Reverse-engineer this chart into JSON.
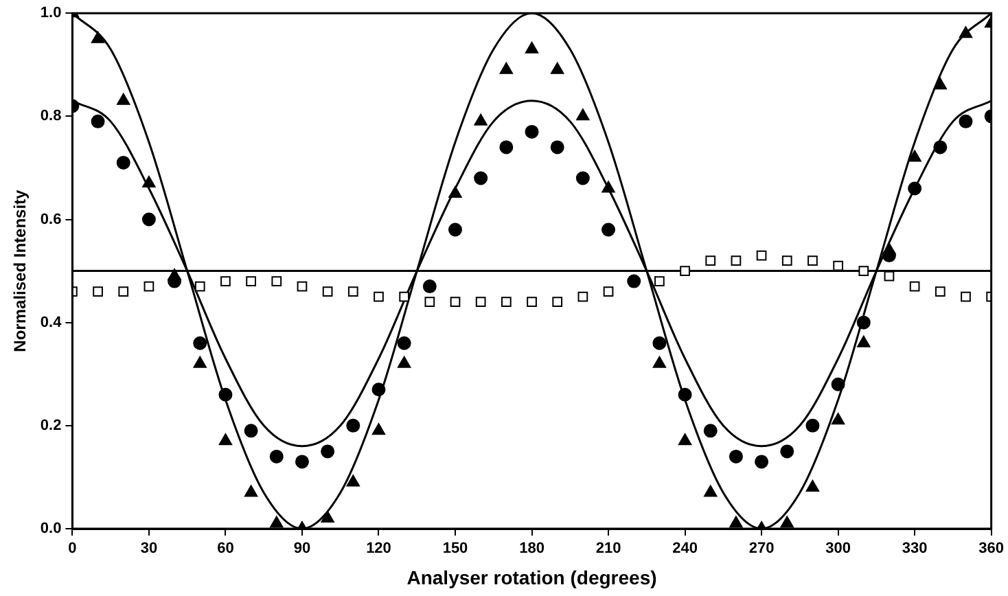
{
  "chart_data": {
    "type": "scatter",
    "xlabel": "Analyser rotation (degrees)",
    "ylabel": "Normalised Intensity",
    "xlim": [
      0,
      360
    ],
    "xticks": [
      0,
      30,
      60,
      90,
      120,
      150,
      180,
      210,
      240,
      270,
      300,
      330,
      360
    ],
    "ylim": [
      0,
      1
    ],
    "yticks": [
      {
        "value": 0,
        "label": "0.0"
      },
      {
        "value": 0.2,
        "label": "0.2"
      },
      {
        "value": 0.4,
        "label": "0.4"
      },
      {
        "value": 0.6,
        "label": "0.6"
      },
      {
        "value": 0.8,
        "label": "0.8"
      },
      {
        "value": 1,
        "label": "1.0"
      }
    ],
    "grid": false,
    "legend": false,
    "x": [
      0,
      10,
      20,
      30,
      40,
      50,
      60,
      70,
      80,
      90,
      100,
      110,
      120,
      130,
      140,
      150,
      160,
      170,
      180,
      190,
      200,
      210,
      220,
      230,
      240,
      250,
      260,
      270,
      280,
      290,
      300,
      310,
      320,
      330,
      340,
      350,
      360
    ],
    "series": [
      {
        "type": "scatter",
        "marker": "triangle",
        "color": "#000000",
        "values": [
          1.0,
          0.95,
          0.83,
          0.67,
          0.49,
          0.32,
          0.17,
          0.07,
          0.01,
          0.0,
          0.02,
          0.09,
          0.19,
          0.32,
          null,
          0.65,
          0.79,
          0.89,
          0.93,
          0.89,
          0.8,
          0.66,
          null,
          0.32,
          0.17,
          0.07,
          0.01,
          0.0,
          0.01,
          0.08,
          0.21,
          0.36,
          0.54,
          0.72,
          0.86,
          0.96,
          0.98
        ]
      },
      {
        "type": "scatter",
        "marker": "circle",
        "color": "#000000",
        "values": [
          0.82,
          0.79,
          0.71,
          0.6,
          0.48,
          0.36,
          0.26,
          0.19,
          0.14,
          0.13,
          0.15,
          0.2,
          0.27,
          0.36,
          0.47,
          0.58,
          0.68,
          0.74,
          0.77,
          0.74,
          0.68,
          0.58,
          0.48,
          0.36,
          0.26,
          0.19,
          0.14,
          0.13,
          0.15,
          0.2,
          0.28,
          0.4,
          0.53,
          0.66,
          0.74,
          0.79,
          0.8
        ]
      },
      {
        "type": "scatter",
        "marker": "square",
        "color": "#000000",
        "values": [
          0.46,
          0.46,
          0.46,
          0.47,
          null,
          0.47,
          0.48,
          0.48,
          0.48,
          0.47,
          0.46,
          0.46,
          0.45,
          0.45,
          0.44,
          0.44,
          0.44,
          0.44,
          0.44,
          0.44,
          0.45,
          0.46,
          null,
          0.48,
          0.5,
          0.52,
          0.52,
          0.53,
          0.52,
          0.52,
          0.51,
          0.5,
          0.49,
          0.47,
          0.46,
          0.45,
          0.45
        ]
      },
      {
        "type": "line",
        "marker": "none",
        "color": "#000000",
        "x": [
          0,
          15,
          30,
          45,
          60,
          75,
          90,
          105,
          120,
          135,
          150,
          165,
          180,
          195,
          210,
          225,
          240,
          255,
          270,
          285,
          300,
          315,
          330,
          345,
          360
        ],
        "values": [
          1.0,
          0.93,
          0.75,
          0.5,
          0.25,
          0.07,
          0.0,
          0.07,
          0.25,
          0.5,
          0.75,
          0.93,
          1.0,
          0.93,
          0.75,
          0.5,
          0.25,
          0.07,
          0.0,
          0.07,
          0.25,
          0.5,
          0.75,
          0.93,
          1.0
        ]
      },
      {
        "type": "line",
        "marker": "none",
        "color": "#000000",
        "x": [
          0,
          15,
          30,
          45,
          60,
          75,
          90,
          105,
          120,
          135,
          150,
          165,
          180,
          195,
          210,
          225,
          240,
          255,
          270,
          285,
          300,
          315,
          330,
          345,
          360
        ],
        "values": [
          0.83,
          0.79,
          0.66,
          0.5,
          0.33,
          0.2,
          0.16,
          0.2,
          0.33,
          0.5,
          0.66,
          0.79,
          0.83,
          0.79,
          0.66,
          0.5,
          0.33,
          0.2,
          0.16,
          0.2,
          0.33,
          0.5,
          0.66,
          0.79,
          0.83
        ]
      },
      {
        "type": "line",
        "marker": "none",
        "color": "#000000",
        "x": [
          0,
          360
        ],
        "values": [
          0.5,
          0.5
        ]
      }
    ]
  }
}
